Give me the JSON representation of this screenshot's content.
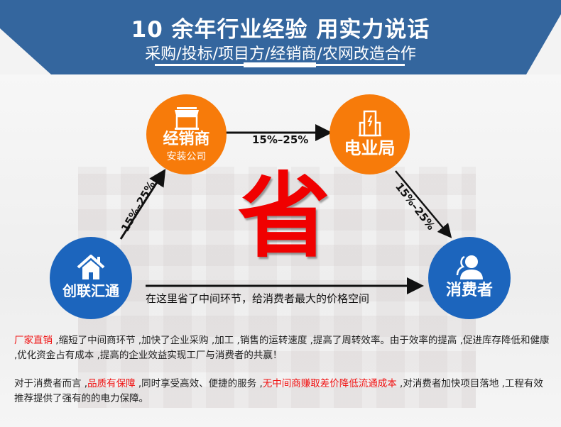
{
  "header": {
    "title": "10 余年行业经验 用实力说话",
    "subtitle": "采购/投标/项目方/经销商/农网改造合作"
  },
  "nodes": {
    "dealer": {
      "label": "经销商",
      "sublabel": "安装公司",
      "icon": "storefront-icon"
    },
    "power_bureau": {
      "label": "电业局",
      "icon": "power-building-icon"
    },
    "company": {
      "label": "创联汇通",
      "icon": "house-icon"
    },
    "consumer": {
      "label": "消费者",
      "icon": "user-icon"
    }
  },
  "arrows": {
    "left": "15%–25%",
    "top": "15%–25%",
    "right": "15%–25%",
    "bottom_caption": "在这里省了中间环节，给消费者最大的价格空间"
  },
  "center_char": "省",
  "paragraph1": {
    "highlight": "厂家直销",
    "text": " ,缩短了中间商环节 ,加快了企业采购 ,加工 ,销售的运转速度 ,提高了周转效率。由于效率的提高 ,促进库存降低和健康 ,优化资金占有成本 ,提高的企业效益实现工厂与消费者的共赢！"
  },
  "paragraph2": {
    "part1": "对于消费者而言 ,",
    "highlight1": "品质有保障",
    "part2": " ,同时享受高效、便捷的服务 ,",
    "highlight2": "无中间商赚取差价降低流通成本",
    "part3": " ,对消费者加快项目落地 ,工程有效推荐提供了强有的的电力保障。"
  },
  "colors": {
    "header_blue": "#34669e",
    "orange": "#f77b0a",
    "blue": "#1c65bd",
    "red": "#f00000"
  }
}
